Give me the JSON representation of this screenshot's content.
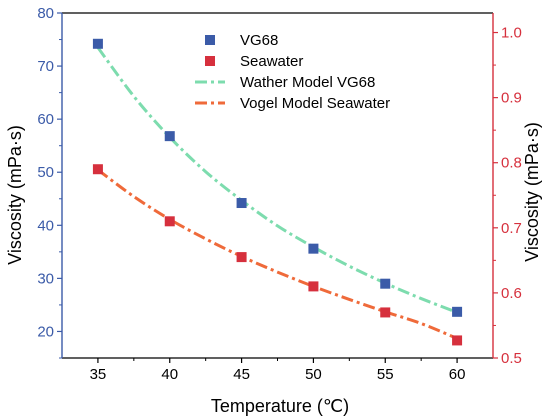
{
  "chart_data": {
    "type": "scatter",
    "xlabel": "Temperature (℃)",
    "ylabel_left": "Viscosity (mPa·s)",
    "ylabel_right": "Viscosity (mPa·s)",
    "x_ticks": [
      35,
      40,
      45,
      50,
      55,
      60
    ],
    "xlim": [
      32.5,
      62.5
    ],
    "ylim_left": [
      15,
      80
    ],
    "y_ticks_left": [
      20,
      30,
      40,
      50,
      60,
      70,
      80
    ],
    "ylim_right": [
      0.5,
      1.03
    ],
    "y_ticks_right": [
      "0.5",
      "0.6",
      "0.7",
      "0.8",
      "0.9",
      "1.0"
    ],
    "grid": false,
    "legend_position": "top-right",
    "series": [
      {
        "name": "VG68",
        "axis": "left",
        "kind": "markers",
        "marker": "square",
        "color": "#3b5ba8",
        "x": [
          35,
          40,
          45,
          50,
          55,
          60
        ],
        "y": [
          74.2,
          56.8,
          44.2,
          35.6,
          29.0,
          23.7
        ]
      },
      {
        "name": "Seawater",
        "axis": "right",
        "kind": "markers",
        "marker": "square",
        "color": "#d6303d",
        "x": [
          35,
          40,
          45,
          50,
          55,
          60
        ],
        "y": [
          0.79,
          0.71,
          0.655,
          0.61,
          0.57,
          0.527
        ]
      },
      {
        "name": "Wather Model VG68",
        "axis": "left",
        "kind": "line",
        "dash": "dash-dot",
        "color": "#7ddcae",
        "x": [
          35,
          37.5,
          40,
          42.5,
          45,
          47.5,
          50,
          52.5,
          55,
          57.5,
          60
        ],
        "y": [
          73.5,
          64.3,
          56.6,
          50.1,
          44.7,
          39.9,
          35.9,
          32.3,
          29.1,
          26.2,
          23.6
        ]
      },
      {
        "name": "Vogel  Model Seawater",
        "axis": "right",
        "kind": "line",
        "dash": "dash-dot",
        "color": "#ef6a3a",
        "x": [
          35,
          37.5,
          40,
          42.5,
          45,
          47.5,
          50,
          52.5,
          55,
          57.5,
          60
        ],
        "y": [
          0.789,
          0.748,
          0.713,
          0.683,
          0.656,
          0.632,
          0.61,
          0.59,
          0.571,
          0.553,
          0.53
        ]
      }
    ]
  },
  "colors": {
    "axis": "#000000",
    "left_axis": "#3b5ba8",
    "right_axis": "#d6303d"
  }
}
